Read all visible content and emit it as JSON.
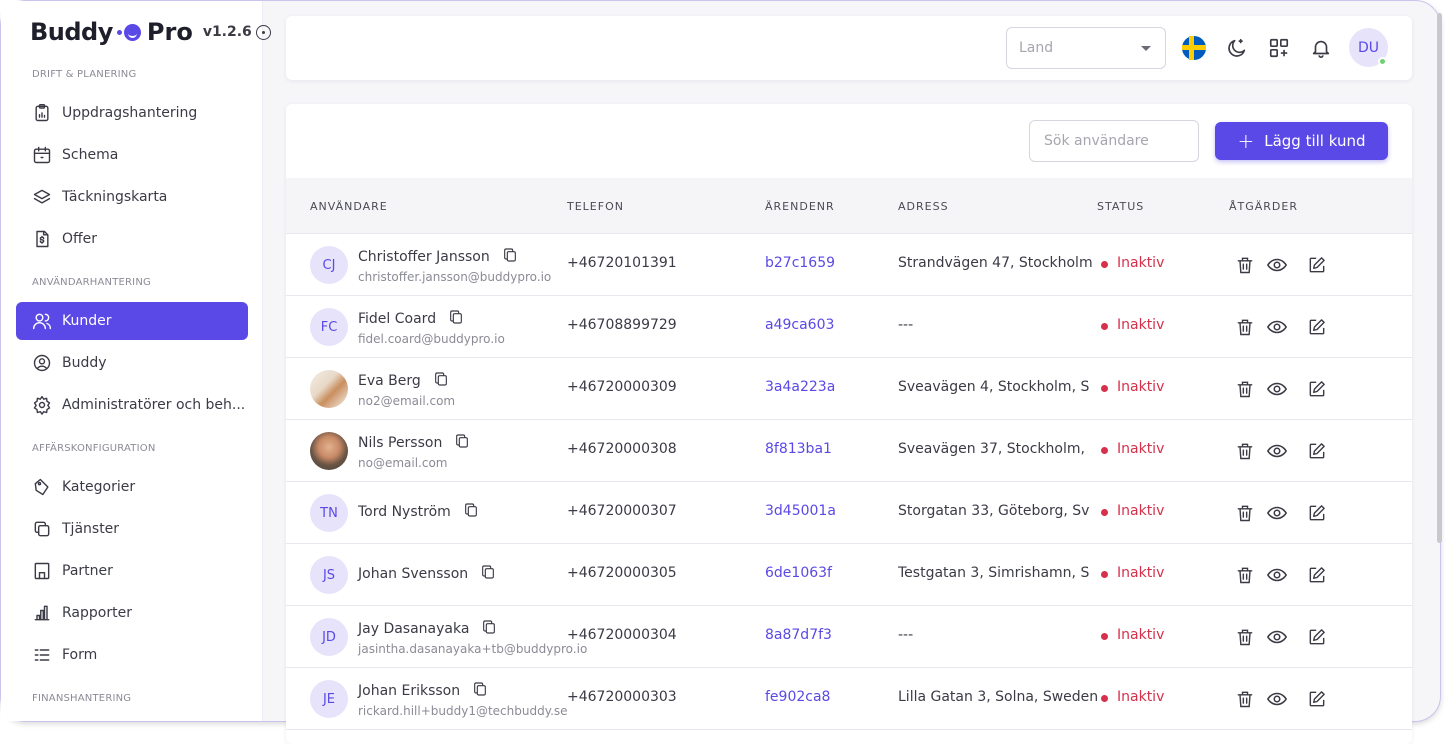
{
  "brand": {
    "name": "Buddy",
    "pro": "Pro",
    "version": "v1.2.6"
  },
  "sidebar": {
    "sections": [
      {
        "title": "DRIFT & PLANERING",
        "items": [
          {
            "label": "Uppdragshantering",
            "icon": "clipboard-icon"
          },
          {
            "label": "Schema",
            "icon": "calendar-icon"
          },
          {
            "label": "Täckningskarta",
            "icon": "layers-icon"
          },
          {
            "label": "Offer",
            "icon": "dollar-document-icon"
          }
        ]
      },
      {
        "title": "ANVÄNDARHANTERING",
        "items": [
          {
            "label": "Kunder",
            "icon": "users-icon",
            "active": true
          },
          {
            "label": "Buddy",
            "icon": "user-circle-icon"
          },
          {
            "label": "Administratörer och beh...",
            "icon": "gear-icon"
          }
        ]
      },
      {
        "title": "AFFÄRSKONFIGURATION",
        "items": [
          {
            "label": "Kategorier",
            "icon": "tag-icon"
          },
          {
            "label": "Tjänster",
            "icon": "copy-icon"
          },
          {
            "label": "Partner",
            "icon": "building-icon"
          },
          {
            "label": "Rapporter",
            "icon": "bar-chart-icon"
          },
          {
            "label": "Form",
            "icon": "list-icon"
          }
        ]
      },
      {
        "title": "FINANSHANTERING",
        "items": []
      }
    ]
  },
  "topbar": {
    "land_placeholder": "Land",
    "user_initials": "DU",
    "icons": [
      "sweden-flag-icon",
      "moon-icon",
      "apps-add-icon",
      "bell-icon"
    ]
  },
  "toolbar": {
    "search_placeholder": "Sök användare",
    "add_label": "Lägg till kund"
  },
  "table": {
    "headers": [
      "ANVÄNDARE",
      "TELEFON",
      "ÄRENDENR",
      "ADRESS",
      "STATUS",
      "ÅTGÄRDER"
    ],
    "rows": [
      {
        "initials": "CJ",
        "name": "Christoffer Jansson",
        "email": "christoffer.jansson@buddypro.io",
        "phone": "+46720101391",
        "arende": "b27c1659",
        "adress": "Strandvägen 47, Stockholm",
        "status": "Inaktiv"
      },
      {
        "initials": "FC",
        "name": "Fidel Coard",
        "email": "fidel.coard@buddypro.io",
        "phone": "+46708899729",
        "arende": "a49ca603",
        "adress": "---",
        "status": "Inaktiv"
      },
      {
        "initials": "",
        "photo": "photo1",
        "name": "Eva Berg",
        "email": "no2@email.com",
        "phone": "+46720000309",
        "arende": "3a4a223a",
        "adress": "Sveavägen 4, Stockholm, S",
        "status": "Inaktiv"
      },
      {
        "initials": "",
        "photo": "photo2",
        "name": "Nils Persson",
        "email": "no@email.com",
        "phone": "+46720000308",
        "arende": "8f813ba1",
        "adress": "Sveavägen 37, Stockholm,",
        "status": "Inaktiv"
      },
      {
        "initials": "TN",
        "name": "Tord Nyström",
        "email": "",
        "phone": "+46720000307",
        "arende": "3d45001a",
        "adress": "Storgatan 33, Göteborg, Sv",
        "status": "Inaktiv"
      },
      {
        "initials": "JS",
        "name": "Johan Svensson",
        "email": "",
        "phone": "+46720000305",
        "arende": "6de1063f",
        "adress": "Testgatan 3, Simrishamn, S",
        "status": "Inaktiv"
      },
      {
        "initials": "JD",
        "name": "Jay Dasanayaka",
        "email": "jasintha.dasanayaka+tb@buddypro.io",
        "phone": "+46720000304",
        "arende": "8a87d7f3",
        "adress": "---",
        "status": "Inaktiv"
      },
      {
        "initials": "JE",
        "name": "Johan Eriksson",
        "email": "rickard.hill+buddy1@techbuddy.se",
        "phone": "+46720000303",
        "arende": "fe902ca8",
        "adress": "Lilla Gatan 3, Solna, Sweden",
        "status": "Inaktiv"
      }
    ]
  },
  "colors": {
    "accent": "#5a49e6",
    "inactive": "#d6304a"
  }
}
